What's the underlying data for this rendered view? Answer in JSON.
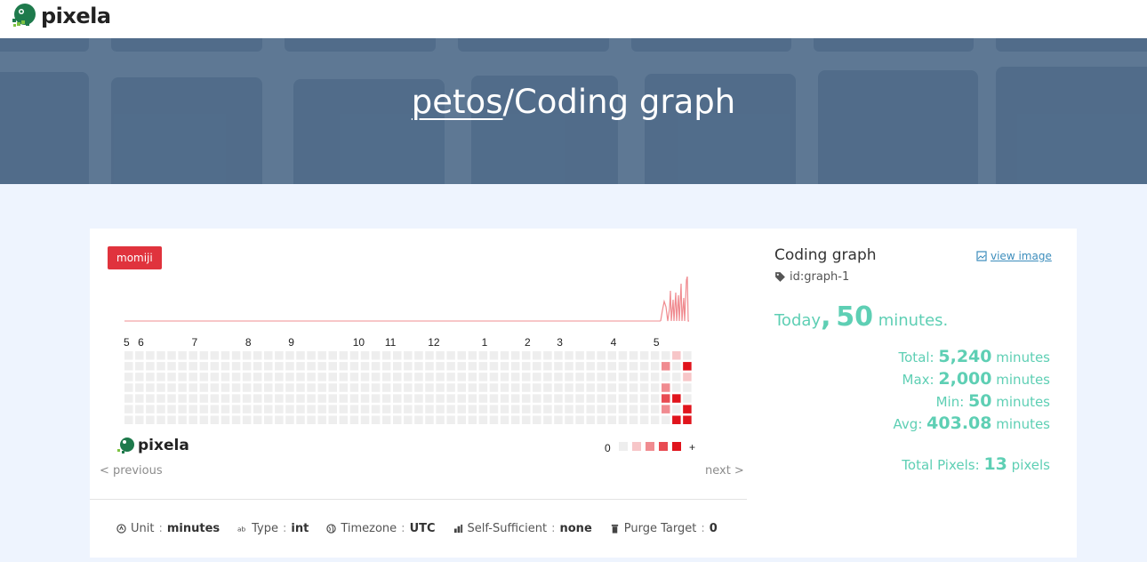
{
  "brand": {
    "name": "pixela"
  },
  "hero": {
    "user": "petos",
    "separator": "/",
    "graph_name": "Coding graph"
  },
  "graph": {
    "tag": "momiji",
    "month_labels": [
      "5",
      "6",
      "7",
      "8",
      "9",
      "10",
      "11",
      "12",
      "1",
      "2",
      "3",
      "4",
      "5"
    ],
    "legend": {
      "min_label": "0",
      "max_label": "+"
    },
    "watermark": "pixela",
    "colors": [
      "#eeeeee",
      "#f7c6c8",
      "#f08b90",
      "#e84b52",
      "#e0141c"
    ],
    "active_cells": [
      {
        "week": 50,
        "day": 1,
        "level": 2
      },
      {
        "week": 50,
        "day": 3,
        "level": 2
      },
      {
        "week": 50,
        "day": 4,
        "level": 3
      },
      {
        "week": 50,
        "day": 5,
        "level": 2
      },
      {
        "week": 51,
        "day": 0,
        "level": 1
      },
      {
        "week": 51,
        "day": 4,
        "level": 4
      },
      {
        "week": 51,
        "day": 6,
        "level": 4
      },
      {
        "week": 52,
        "day": 1,
        "level": 4
      },
      {
        "week": 52,
        "day": 2,
        "level": 1
      },
      {
        "week": 52,
        "day": 5,
        "level": 4
      },
      {
        "week": 52,
        "day": 6,
        "level": 4
      }
    ],
    "prev_label": "< previous",
    "next_label": "next >"
  },
  "meta": [
    {
      "icon": "unit-icon",
      "label": "Unit",
      "value": "minutes"
    },
    {
      "icon": "type-icon",
      "label": "Type",
      "value": "int"
    },
    {
      "icon": "globe-icon",
      "label": "Timezone",
      "value": "UTC"
    },
    {
      "icon": "self-sufficient-icon",
      "label": "Self-Sufficient",
      "value": "none"
    },
    {
      "icon": "trash-icon",
      "label": "Purge Target",
      "value": "0"
    }
  ],
  "info": {
    "title": "Coding graph",
    "id_label": "id:graph-1",
    "view_image": "view image",
    "today": {
      "prefix": "Today",
      "comma": ",",
      "value": "50",
      "unit": "minutes."
    },
    "stats": [
      {
        "label": "Total:",
        "value": "5,240",
        "unit": "minutes"
      },
      {
        "label": "Max:",
        "value": "2,000",
        "unit": "minutes"
      },
      {
        "label": "Min:",
        "value": "50",
        "unit": "minutes"
      },
      {
        "label": "Avg:",
        "value": "403.08",
        "unit": "minutes"
      }
    ],
    "total_pixels": {
      "label": "Total Pixels:",
      "value": "13",
      "unit": "pixels"
    }
  }
}
